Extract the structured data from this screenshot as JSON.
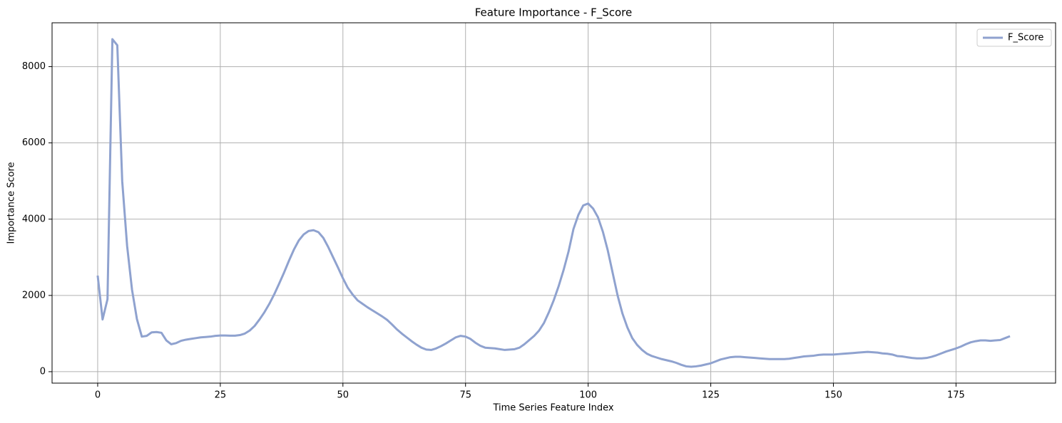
{
  "chart_data": {
    "type": "line",
    "title": "Feature Importance - F_Score",
    "xlabel": "Time Series Feature Index",
    "ylabel": "Importance Score",
    "x": [
      0,
      1,
      2,
      3,
      4,
      5,
      6,
      7,
      8,
      9,
      10,
      11,
      12,
      13,
      14,
      15,
      16,
      17,
      18,
      19,
      20,
      21,
      22,
      23,
      24,
      25,
      26,
      27,
      28,
      29,
      30,
      31,
      32,
      33,
      34,
      35,
      36,
      37,
      38,
      39,
      40,
      41,
      42,
      43,
      44,
      45,
      46,
      47,
      48,
      49,
      50,
      51,
      52,
      53,
      54,
      55,
      56,
      57,
      58,
      59,
      60,
      61,
      62,
      63,
      64,
      65,
      66,
      67,
      68,
      69,
      70,
      71,
      72,
      73,
      74,
      75,
      76,
      77,
      78,
      79,
      80,
      81,
      82,
      83,
      84,
      85,
      86,
      87,
      88,
      89,
      90,
      91,
      92,
      93,
      94,
      95,
      96,
      97,
      98,
      99,
      100,
      101,
      102,
      103,
      104,
      105,
      106,
      107,
      108,
      109,
      110,
      111,
      112,
      113,
      114,
      115,
      116,
      117,
      118,
      119,
      120,
      121,
      122,
      123,
      124,
      125,
      126,
      127,
      128,
      129,
      130,
      131,
      132,
      133,
      134,
      135,
      136,
      137,
      138,
      139,
      140,
      141,
      142,
      143,
      144,
      145,
      146,
      147,
      148,
      149,
      150,
      151,
      152,
      153,
      154,
      155,
      156,
      157,
      158,
      159,
      160,
      161,
      162,
      163,
      164,
      165,
      166,
      167,
      168,
      169,
      170,
      171,
      172,
      173,
      174,
      175,
      176,
      177,
      178,
      179,
      180,
      181,
      182,
      183,
      184,
      185,
      186
    ],
    "series": [
      {
        "name": "F_Score",
        "color": "#8fa2cf",
        "values": [
          2520,
          1370,
          1900,
          8720,
          8560,
          5000,
          3300,
          2150,
          1380,
          920,
          940,
          1030,
          1040,
          1020,
          820,
          720,
          750,
          810,
          840,
          860,
          880,
          900,
          910,
          920,
          940,
          950,
          950,
          945,
          945,
          960,
          1000,
          1080,
          1200,
          1370,
          1560,
          1780,
          2030,
          2310,
          2600,
          2910,
          3200,
          3440,
          3600,
          3690,
          3710,
          3660,
          3510,
          3270,
          3000,
          2730,
          2450,
          2200,
          2020,
          1870,
          1780,
          1690,
          1610,
          1530,
          1450,
          1360,
          1240,
          1110,
          1000,
          900,
          800,
          710,
          630,
          580,
          570,
          610,
          670,
          740,
          820,
          900,
          940,
          920,
          860,
          760,
          680,
          630,
          620,
          610,
          590,
          570,
          580,
          590,
          630,
          720,
          830,
          940,
          1080,
          1280,
          1560,
          1880,
          2250,
          2670,
          3150,
          3740,
          4110,
          4360,
          4410,
          4280,
          4050,
          3670,
          3180,
          2590,
          2000,
          1520,
          1160,
          880,
          700,
          570,
          470,
          410,
          370,
          330,
          300,
          270,
          230,
          180,
          140,
          130,
          140,
          160,
          190,
          220,
          270,
          320,
          350,
          380,
          390,
          390,
          380,
          370,
          360,
          350,
          340,
          330,
          330,
          330,
          330,
          340,
          360,
          380,
          400,
          410,
          420,
          440,
          450,
          450,
          450,
          460,
          470,
          480,
          490,
          500,
          510,
          520,
          510,
          500,
          480,
          470,
          450,
          410,
          400,
          380,
          360,
          350,
          350,
          360,
          390,
          430,
          480,
          530,
          570,
          610,
          660,
          720,
          770,
          800,
          820,
          820,
          810,
          820,
          830,
          880,
          930
        ]
      }
    ],
    "xlim": [
      -9.3,
      195.3
    ],
    "ylim": [
      -300,
      9150
    ],
    "xticks": [
      0,
      25,
      50,
      75,
      100,
      125,
      150,
      175
    ],
    "yticks": [
      0,
      2000,
      4000,
      6000,
      8000
    ],
    "grid": true,
    "legend": "upper right"
  }
}
